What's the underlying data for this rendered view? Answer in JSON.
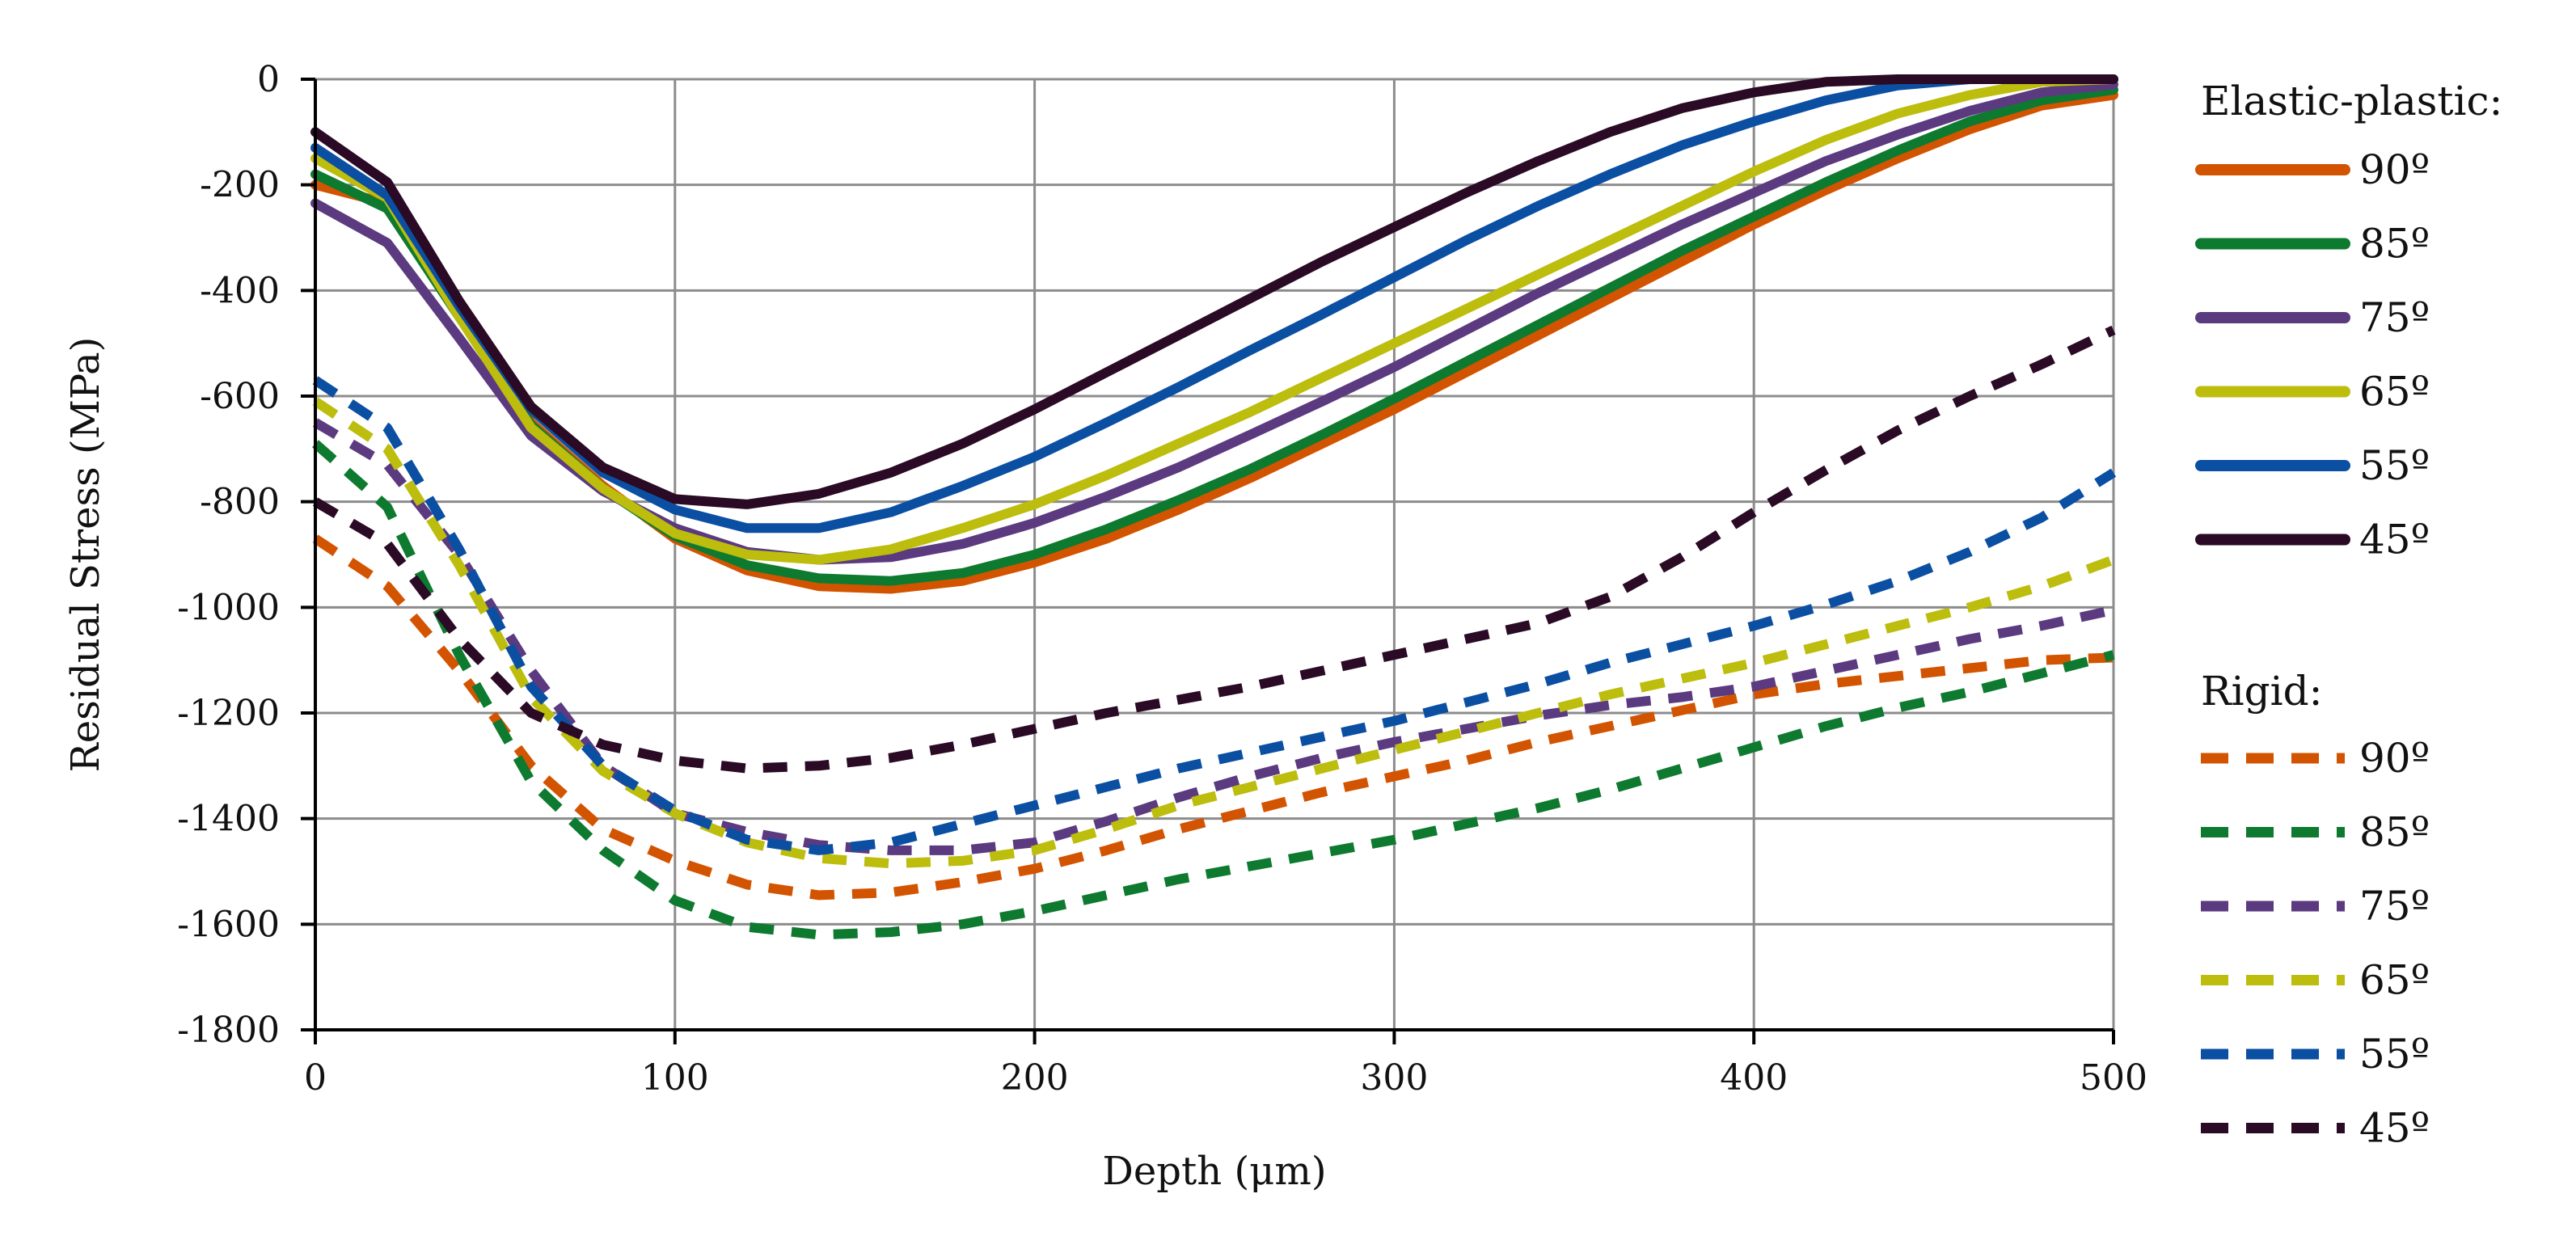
{
  "chart_data": {
    "type": "line",
    "title": "",
    "xlabel": "Depth (μm)",
    "ylabel": "Residual Stress (MPa)",
    "xlim": [
      0,
      500
    ],
    "ylim": [
      -1800,
      0
    ],
    "xticks": [
      0,
      100,
      200,
      300,
      400,
      500
    ],
    "yticks": [
      0,
      -200,
      -400,
      -600,
      -800,
      -1000,
      -1200,
      -1400,
      -1600,
      -1800
    ],
    "xtick_labels": [
      "0",
      "100",
      "200",
      "300",
      "400",
      "500"
    ],
    "ytick_labels": [
      "0",
      "-200",
      "-400",
      "-600",
      "-800",
      "-1000",
      "-1200",
      "-1400",
      "-1600",
      "-1800"
    ],
    "grid": true,
    "legend_position": "right",
    "groups": [
      {
        "label": "Elastic-plastic:",
        "style": "solid",
        "series": [
          {
            "name": "90º",
            "color": "#D35400",
            "x": [
              0,
              20,
              40,
              60,
              80,
              100,
              120,
              140,
              160,
              180,
              200,
              220,
              240,
              260,
              280,
              300,
              320,
              340,
              360,
              380,
              400,
              420,
              440,
              460,
              480,
              500
            ],
            "y": [
              -200,
              -235,
              -440,
              -650,
              -770,
              -870,
              -930,
              -960,
              -965,
              -950,
              -915,
              -870,
              -815,
              -755,
              -690,
              -625,
              -555,
              -485,
              -415,
              -345,
              -275,
              -210,
              -150,
              -95,
              -50,
              -30
            ]
          },
          {
            "name": "85º",
            "color": "#0E7A2F",
            "x": [
              0,
              20,
              40,
              60,
              80,
              100,
              120,
              140,
              160,
              180,
              200,
              220,
              240,
              260,
              280,
              300,
              320,
              340,
              360,
              380,
              400,
              420,
              440,
              460,
              480,
              500
            ],
            "y": [
              -180,
              -245,
              -450,
              -655,
              -775,
              -865,
              -920,
              -945,
              -950,
              -935,
              -900,
              -852,
              -797,
              -738,
              -673,
              -605,
              -535,
              -465,
              -395,
              -325,
              -260,
              -195,
              -135,
              -80,
              -40,
              -20
            ]
          },
          {
            "name": "75º",
            "color": "#5B3A80",
            "x": [
              0,
              20,
              40,
              60,
              80,
              100,
              120,
              140,
              160,
              180,
              200,
              220,
              240,
              260,
              280,
              300,
              320,
              340,
              360,
              380,
              400,
              420,
              440,
              460,
              480,
              500
            ],
            "y": [
              -235,
              -310,
              -490,
              -675,
              -780,
              -850,
              -895,
              -910,
              -905,
              -880,
              -840,
              -790,
              -735,
              -673,
              -610,
              -545,
              -475,
              -405,
              -340,
              -275,
              -215,
              -155,
              -105,
              -60,
              -25,
              -10
            ]
          },
          {
            "name": "65º",
            "color": "#BCBD0D",
            "x": [
              0,
              20,
              40,
              60,
              80,
              100,
              120,
              140,
              160,
              180,
              200,
              220,
              240,
              260,
              280,
              300,
              320,
              340,
              360,
              380,
              400,
              420,
              440,
              460,
              480,
              500
            ],
            "y": [
              -150,
              -225,
              -450,
              -660,
              -775,
              -860,
              -900,
              -910,
              -890,
              -850,
              -805,
              -750,
              -690,
              -630,
              -565,
              -500,
              -435,
              -370,
              -305,
              -240,
              -175,
              -115,
              -65,
              -30,
              -5,
              0
            ]
          },
          {
            "name": "55º",
            "color": "#0B4FA3",
            "x": [
              0,
              20,
              40,
              60,
              80,
              100,
              120,
              140,
              160,
              180,
              200,
              220,
              240,
              260,
              280,
              300,
              320,
              340,
              360,
              380,
              400,
              420,
              440,
              460,
              480,
              500
            ],
            "y": [
              -130,
              -220,
              -430,
              -625,
              -745,
              -815,
              -850,
              -850,
              -820,
              -770,
              -715,
              -650,
              -583,
              -513,
              -445,
              -375,
              -305,
              -240,
              -180,
              -125,
              -80,
              -40,
              -12,
              0,
              0,
              0
            ]
          },
          {
            "name": "45º",
            "color": "#2A0A24",
            "x": [
              0,
              20,
              40,
              60,
              80,
              100,
              120,
              140,
              160,
              180,
              200,
              220,
              240,
              260,
              280,
              300,
              320,
              340,
              360,
              380,
              400,
              420,
              440,
              460,
              480,
              500
            ],
            "y": [
              -100,
              -195,
              -420,
              -620,
              -735,
              -795,
              -805,
              -785,
              -745,
              -690,
              -625,
              -555,
              -485,
              -415,
              -345,
              -280,
              -215,
              -155,
              -100,
              -55,
              -25,
              -5,
              0,
              0,
              0,
              0
            ]
          }
        ]
      },
      {
        "label": "Rigid:",
        "style": "dashed",
        "series": [
          {
            "name": "90º",
            "color": "#D35400",
            "x": [
              0,
              20,
              40,
              60,
              80,
              100,
              120,
              140,
              160,
              180,
              200,
              220,
              240,
              260,
              280,
              300,
              320,
              340,
              360,
              380,
              400,
              420,
              440,
              460,
              480,
              500
            ],
            "y": [
              -870,
              -960,
              -1120,
              -1300,
              -1420,
              -1480,
              -1525,
              -1545,
              -1540,
              -1520,
              -1495,
              -1460,
              -1420,
              -1385,
              -1350,
              -1320,
              -1290,
              -1255,
              -1225,
              -1195,
              -1165,
              -1145,
              -1130,
              -1115,
              -1100,
              -1095
            ]
          },
          {
            "name": "85º",
            "color": "#0E7A2F",
            "x": [
              0,
              20,
              40,
              60,
              80,
              100,
              120,
              140,
              160,
              180,
              200,
              220,
              240,
              260,
              280,
              300,
              320,
              340,
              360,
              380,
              400,
              420,
              440,
              460,
              480,
              500
            ],
            "y": [
              -690,
              -810,
              -1090,
              -1330,
              -1460,
              -1555,
              -1605,
              -1620,
              -1615,
              -1600,
              -1575,
              -1545,
              -1515,
              -1490,
              -1465,
              -1440,
              -1410,
              -1380,
              -1345,
              -1305,
              -1265,
              -1225,
              -1190,
              -1160,
              -1125,
              -1090
            ]
          },
          {
            "name": "75º",
            "color": "#5B3A80",
            "x": [
              0,
              20,
              40,
              60,
              80,
              100,
              120,
              140,
              160,
              180,
              200,
              220,
              240,
              260,
              280,
              300,
              320,
              340,
              360,
              380,
              400,
              420,
              440,
              460,
              480,
              500
            ],
            "y": [
              -650,
              -730,
              -900,
              -1120,
              -1300,
              -1390,
              -1425,
              -1450,
              -1460,
              -1460,
              -1445,
              -1405,
              -1360,
              -1320,
              -1285,
              -1255,
              -1230,
              -1205,
              -1185,
              -1170,
              -1150,
              -1120,
              -1090,
              -1060,
              -1035,
              -1005
            ]
          },
          {
            "name": "65º",
            "color": "#BCBD0D",
            "x": [
              0,
              20,
              40,
              60,
              80,
              100,
              120,
              140,
              160,
              180,
              200,
              220,
              240,
              260,
              280,
              300,
              320,
              340,
              360,
              380,
              400,
              420,
              440,
              460,
              480,
              500
            ],
            "y": [
              -610,
              -700,
              -920,
              -1170,
              -1310,
              -1390,
              -1445,
              -1475,
              -1485,
              -1480,
              -1460,
              -1420,
              -1375,
              -1340,
              -1305,
              -1270,
              -1235,
              -1200,
              -1165,
              -1135,
              -1105,
              -1070,
              -1035,
              -1000,
              -960,
              -910
            ]
          },
          {
            "name": "55º",
            "color": "#0B4FA3",
            "x": [
              0,
              20,
              40,
              60,
              80,
              100,
              120,
              140,
              160,
              180,
              200,
              220,
              240,
              260,
              280,
              300,
              320,
              340,
              360,
              380,
              400,
              420,
              440,
              460,
              480,
              500
            ],
            "y": [
              -570,
              -660,
              -890,
              -1150,
              -1300,
              -1385,
              -1440,
              -1460,
              -1445,
              -1410,
              -1375,
              -1340,
              -1305,
              -1275,
              -1245,
              -1215,
              -1180,
              -1145,
              -1105,
              -1070,
              -1035,
              -995,
              -950,
              -895,
              -830,
              -745
            ]
          },
          {
            "name": "45º",
            "color": "#2A0A24",
            "x": [
              0,
              20,
              40,
              60,
              80,
              100,
              120,
              140,
              160,
              180,
              200,
              220,
              240,
              260,
              280,
              300,
              320,
              340,
              360,
              380,
              400,
              420,
              440,
              460,
              480,
              500
            ],
            "y": [
              -800,
              -880,
              -1060,
              -1200,
              -1260,
              -1290,
              -1305,
              -1300,
              -1285,
              -1260,
              -1230,
              -1200,
              -1175,
              -1150,
              -1120,
              -1090,
              -1060,
              -1030,
              -980,
              -905,
              -820,
              -740,
              -665,
              -600,
              -540,
              -475
            ]
          }
        ]
      }
    ]
  }
}
